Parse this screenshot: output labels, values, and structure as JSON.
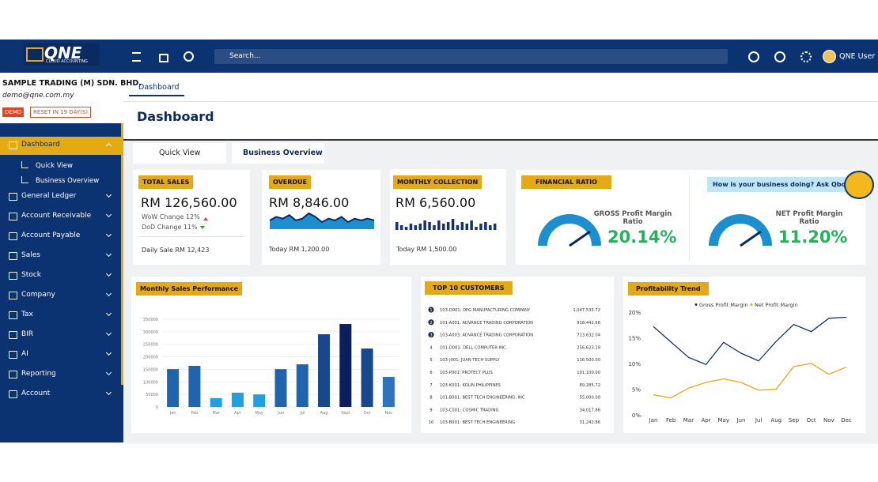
{
  "header": {
    "logo": "QNE",
    "logo_sub": "CLOUD ACCOUNTING",
    "search": "Search...",
    "user": "QNE User"
  },
  "company": {
    "name": "SAMPLE TRADING (M) SDN. BHD.",
    "email": "demo@qne.com.my",
    "badge": "DEMO",
    "reset": "RESET IN 19 DAY(S)"
  },
  "sidebar": [
    {
      "label": "Dashboard",
      "children": [
        "Quick View",
        "Business Overview"
      ]
    },
    {
      "label": "General Ledger"
    },
    {
      "label": "Account Receivable"
    },
    {
      "label": "Account Payable"
    },
    {
      "label": "Sales"
    },
    {
      "label": "Stock"
    },
    {
      "label": "Company"
    },
    {
      "label": "Tax"
    },
    {
      "label": "BIR"
    },
    {
      "label": "AI"
    },
    {
      "label": "Reporting"
    },
    {
      "label": "Account"
    }
  ],
  "tab": "Dashboard",
  "page_title": "Dashboard",
  "subtabs": [
    "Quick View",
    "Business Overview"
  ],
  "cards": {
    "total_sales": {
      "title": "TOTAL SALES",
      "value": "RM 126,560.00",
      "wow": "WoW Change 12%",
      "dod": "DoD Change 11%",
      "footer": "Daily Sale RM 12,423"
    },
    "overdue": {
      "title": "OVERDUE",
      "value": "RM 8,846.00",
      "footer": "Today RM 1,200.00",
      "trend": [
        5,
        7,
        6,
        8,
        5,
        6,
        9,
        7,
        4,
        6,
        5,
        7,
        4,
        6,
        5,
        6,
        5
      ]
    },
    "collection": {
      "title": "MONTHLY COLLECTION",
      "value": "RM 6,560.00",
      "footer": "Today RM 1,500.00",
      "trend": [
        5,
        3,
        2,
        4,
        3,
        4,
        6,
        5,
        3,
        6,
        4,
        5,
        7,
        3,
        5,
        4,
        6,
        2,
        4,
        5,
        3,
        4
      ]
    },
    "financial_ratio": {
      "title": "FINANCIAL RATIO",
      "gauges": [
        {
          "label": "GROSS Profit Margin Ratio",
          "value": "20.14%"
        },
        {
          "label": "NET Profit Margin Ratio",
          "value": "11.20%"
        }
      ]
    },
    "qbot": "How is your business doing? Ask Qbot!"
  },
  "top_customers": {
    "title": "TOP 10 CUSTOMERS",
    "rows": [
      [
        "1",
        "103-D001: DFG MANUFACTURING COMPANY",
        "1,047,535.72"
      ],
      [
        "2",
        "101-A001: ADVANCE TRADING CORPORATION",
        "918,442.66"
      ],
      [
        "3",
        "103-A003: ADVANCE TRADING CORPORATION",
        "713,632.04"
      ],
      [
        "4",
        "101-D001: DELL COMPUTER INC.",
        "256,623.19"
      ],
      [
        "5",
        "103-J001: JUAN TECH SUPPLY",
        "116,500.00"
      ],
      [
        "6",
        "103-P001: PROTECT PLUS",
        "101,100.00"
      ],
      [
        "7",
        "103-K001: KOLIN PHILIPPINES",
        "89,285.72"
      ],
      [
        "8",
        "101-B001: BEST TECH ENGINEERING, INC",
        "55,000.00"
      ],
      [
        "9",
        "103-C001: COSMIC TRADING",
        "34,017.86"
      ],
      [
        "10",
        "103-B001: BEST TECH ENGINEERING",
        "31,242.86"
      ]
    ]
  },
  "chart_data": [
    {
      "type": "bar",
      "title": "Monthly Sales Performance",
      "categories": [
        "Jan",
        "Feb",
        "Mar",
        "Apr",
        "May",
        "Jun",
        "Jul",
        "Aug",
        "Sept",
        "Oct",
        "Nov"
      ],
      "values": [
        151000,
        164000,
        35000,
        57000,
        50000,
        151000,
        170000,
        290000,
        331000,
        233000,
        120000
      ],
      "colors": [
        "#1f64ad",
        "#1f64ad",
        "#1fa0e0",
        "#1fa0e0",
        "#1fa0e0",
        "#1f64ad",
        "#1f64ad",
        "#17478c",
        "#0b1f5e",
        "#17478c",
        "#2a74c0"
      ],
      "ylim": [
        0,
        350000
      ],
      "yticks": [
        0,
        50000,
        100000,
        150000,
        200000,
        250000,
        300000,
        350000
      ],
      "grid": true
    },
    {
      "type": "line",
      "title": "Profitability Trend",
      "categories": [
        "Jan",
        "Feb",
        "Mar",
        "Apr",
        "May",
        "Jun",
        "Jul",
        "Aug",
        "Sep",
        "Oct",
        "Nov",
        "Dec"
      ],
      "series": [
        {
          "name": "Gross Profit Margin",
          "color": "#14336e",
          "values": [
            17.2,
            14.2,
            11.2,
            9.8,
            14.1,
            12.0,
            10.5,
            14.3,
            17.6,
            16.2,
            18.8,
            19.0
          ]
        },
        {
          "name": "Net Profit Margin",
          "color": "#e5a912",
          "values": [
            3.9,
            3.3,
            5.2,
            6.3,
            7.0,
            6.3,
            4.8,
            5.0,
            9.4,
            10.0,
            7.9,
            9.3
          ]
        }
      ],
      "ylim": [
        0,
        20
      ],
      "yticks": [
        {
          "value": 0,
          "label": "0%"
        },
        {
          "value": 5,
          "label": "5%"
        },
        {
          "value": 10,
          "label": "10%"
        },
        {
          "value": 15,
          "label": "15%"
        },
        {
          "value": 20,
          "label": "20%"
        }
      ],
      "grid": false,
      "legend": "top"
    }
  ]
}
